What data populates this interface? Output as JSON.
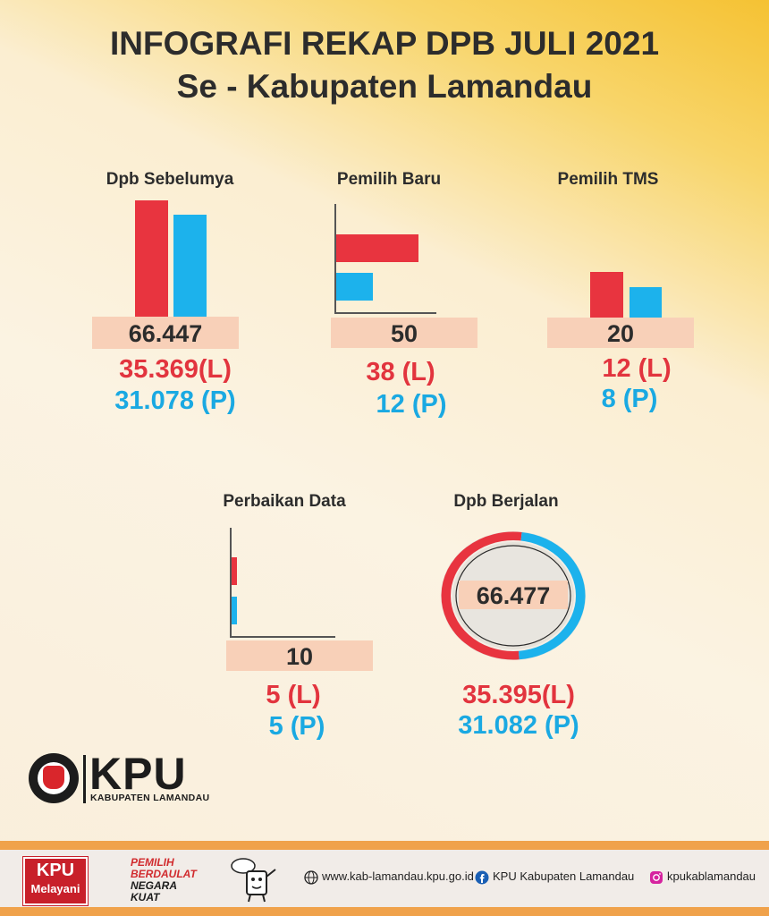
{
  "header": {
    "title": "INFOGRAFI REKAP DPB JULI 2021",
    "subtitle": "Se - Kabupaten Lamandau"
  },
  "colors": {
    "male": "#e8343f",
    "female": "#1cb2ec",
    "total_box": "#f8d0b8",
    "accent": "#f5c233"
  },
  "panels": {
    "dpb_sebelumya": {
      "title": "Dpb Sebelumya",
      "total": "66.447",
      "l": "35.369(L)",
      "p": "31.078 (P)"
    },
    "pemilih_baru": {
      "title": "Pemilih Baru",
      "total": "50",
      "l": "38 (L)",
      "p": "12 (P)"
    },
    "pemilih_tms": {
      "title": "Pemilih TMS",
      "total": "20",
      "l": "12 (L)",
      "p": "8 (P)"
    },
    "perbaikan_data": {
      "title": "Perbaikan Data",
      "total": "10",
      "l": "5 (L)",
      "p": "5 (P)"
    },
    "dpb_berjalan": {
      "title": "Dpb Berjalan",
      "total": "66.477",
      "l": "35.395(L)",
      "p": "31.082 (P)"
    }
  },
  "chart_data": [
    {
      "type": "bar",
      "categories": [
        "L",
        "P"
      ],
      "values": [
        35369,
        31078
      ]
    },
    {
      "type": "bar",
      "orientation": "horizontal",
      "categories": [
        "L",
        "P"
      ],
      "values": [
        38,
        12
      ]
    },
    {
      "type": "bar",
      "categories": [
        "L",
        "P"
      ],
      "values": [
        12,
        8
      ]
    },
    {
      "type": "bar",
      "orientation": "horizontal",
      "categories": [
        "L",
        "P"
      ],
      "values": [
        5,
        5
      ]
    },
    {
      "type": "pie",
      "style": "ring",
      "categories": [
        "L",
        "P"
      ],
      "values": [
        35395,
        31082
      ]
    }
  ],
  "logo": {
    "name": "KPU",
    "subtitle": "KABUPATEN LAMANDAU"
  },
  "footer": {
    "badge_line1": "KPU",
    "badge_line2": "Melayani",
    "slogan_line1": "PEMILIH BERDAULAT",
    "slogan_line2": "NEGARA KUAT",
    "website": "www.kab-lamandau.kpu.go.id",
    "facebook": "KPU Kabupaten Lamandau",
    "instagram": "kpukablamandau",
    "icons": [
      "globe-icon",
      "facebook-icon",
      "instagram-icon"
    ]
  }
}
